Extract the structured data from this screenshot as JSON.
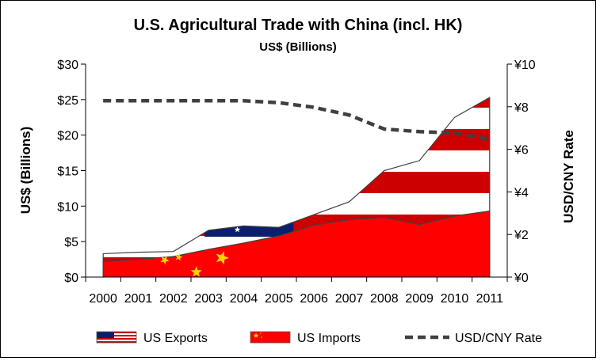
{
  "chart_data": {
    "type": "area",
    "title": "U.S. Agricultural Trade with China (incl. HK)",
    "subtitle": "US$ (Billions)",
    "ylabel": "US$ (Billions)",
    "y2label": "USD/CNY Rate",
    "categories": [
      "2000",
      "2001",
      "2002",
      "2003",
      "2004",
      "2005",
      "2006",
      "2007",
      "2008",
      "2009",
      "2010",
      "2011"
    ],
    "ylim": [
      0,
      30
    ],
    "y2lim": [
      0,
      10
    ],
    "y_ticks": [
      "$0",
      "$5",
      "$10",
      "$15",
      "$20",
      "$25",
      "$30"
    ],
    "y_tick_values": [
      0,
      5,
      10,
      15,
      20,
      25,
      30
    ],
    "y2_ticks": [
      "¥0",
      "¥2",
      "¥4",
      "¥6",
      "¥8",
      "¥10"
    ],
    "y2_tick_values": [
      0,
      2,
      4,
      6,
      8,
      10
    ],
    "grid": false,
    "legend_position": "bottom",
    "series": [
      {
        "name": "US Exports",
        "kind": "area",
        "axis": "left",
        "fill": "flag-usa",
        "values": [
          3.3,
          3.5,
          3.6,
          6.6,
          7.2,
          7.0,
          8.8,
          10.6,
          15.0,
          16.4,
          22.5,
          25.3
        ]
      },
      {
        "name": "US Imports",
        "kind": "area",
        "axis": "left",
        "fill": "flag-china",
        "values": [
          2.2,
          2.5,
          2.9,
          3.9,
          4.8,
          5.8,
          7.3,
          8.1,
          8.4,
          7.4,
          8.6,
          9.3
        ]
      },
      {
        "name": "USD/CNY Rate",
        "kind": "line",
        "axis": "right",
        "style": "dashed",
        "values": [
          8.28,
          8.28,
          8.28,
          8.28,
          8.28,
          8.19,
          7.97,
          7.61,
          6.95,
          6.83,
          6.77,
          6.46
        ]
      }
    ],
    "colors": {
      "usa_red": "#cc0000",
      "usa_white": "#ffffff",
      "usa_blue": "#0a1f6e",
      "china_red": "#ff0000",
      "china_star": "#ffd200",
      "line": "#404040"
    }
  }
}
